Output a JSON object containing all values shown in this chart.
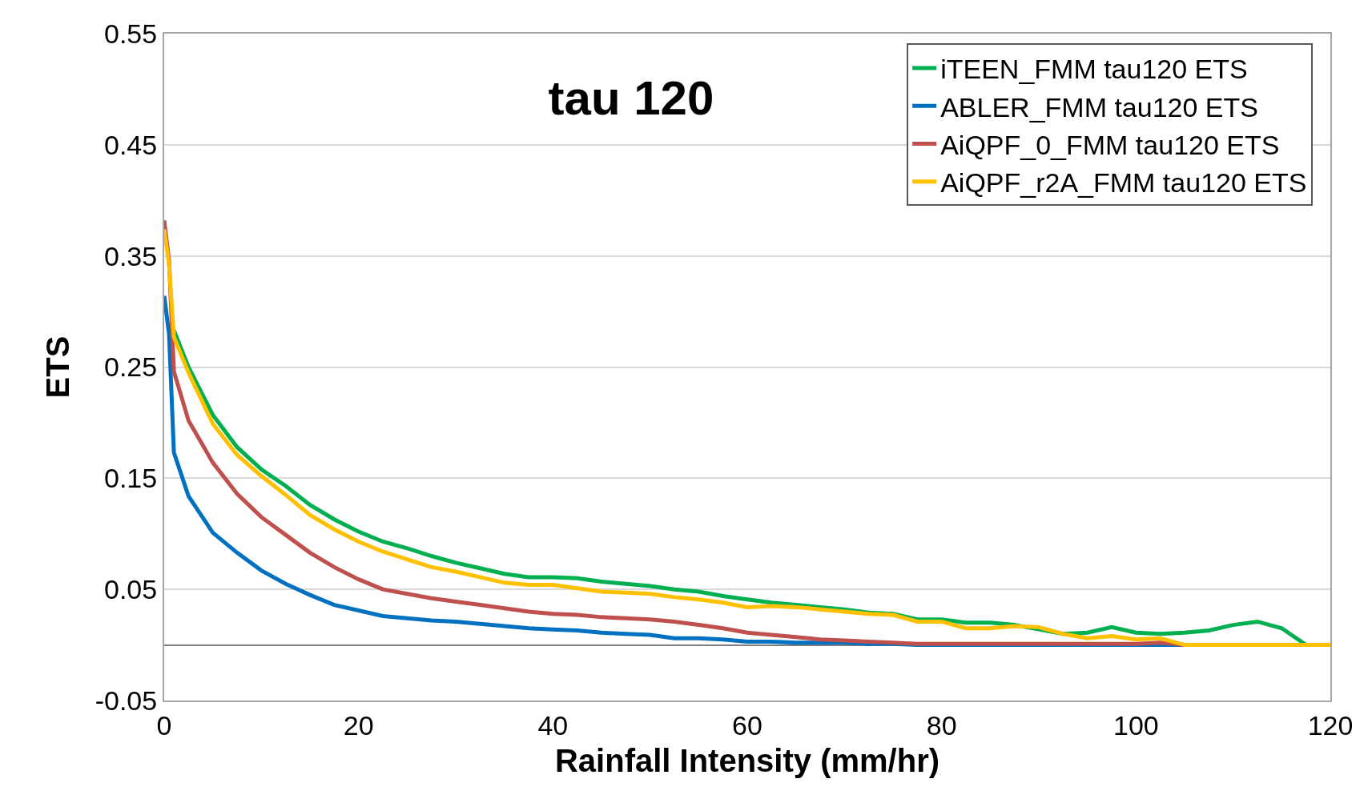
{
  "chart_data": {
    "type": "line",
    "title": "tau 120",
    "xlabel": "Rainfall Intensity (mm/hr)",
    "ylabel": "ETS",
    "x": [
      0,
      0.5,
      1,
      2.5,
      5,
      7.5,
      10,
      12.5,
      15,
      17.5,
      20,
      22.5,
      25,
      27.5,
      30,
      32.5,
      35,
      37.5,
      40,
      42.5,
      45,
      47.5,
      50,
      52.5,
      55,
      57.5,
      60,
      62.5,
      65,
      67.5,
      70,
      72.5,
      75,
      77.5,
      80,
      82.5,
      85,
      87.5,
      90,
      92.5,
      95,
      97.5,
      100,
      102.5,
      105,
      107.5,
      110,
      112.5,
      115,
      117.5,
      120
    ],
    "series": [
      {
        "name": "iTEEN_FMM tau120 ETS",
        "color": "#00b050",
        "values": [
          null,
          null,
          0.283,
          0.25,
          0.207,
          0.178,
          0.158,
          0.143,
          0.126,
          0.113,
          0.102,
          0.093,
          0.087,
          0.08,
          0.074,
          0.069,
          0.064,
          0.061,
          0.061,
          0.06,
          0.057,
          0.055,
          0.053,
          0.05,
          0.048,
          0.044,
          0.041,
          0.038,
          0.036,
          0.034,
          0.032,
          0.029,
          0.028,
          0.023,
          0.023,
          0.02,
          0.02,
          0.018,
          0.014,
          0.01,
          0.011,
          0.016,
          0.011,
          0.01,
          0.011,
          0.013,
          0.018,
          0.021,
          0.015,
          0,
          0
        ]
      },
      {
        "name": "ABLER_FMM tau120 ETS",
        "color": "#0070c0",
        "values": [
          0.314,
          0.28,
          0.173,
          0.134,
          0.101,
          0.083,
          0.067,
          0.055,
          0.045,
          0.036,
          0.031,
          0.026,
          0.024,
          0.022,
          0.021,
          0.019,
          0.017,
          0.015,
          0.014,
          0.013,
          0.011,
          0.01,
          0.009,
          0.006,
          0.006,
          0.005,
          0.003,
          0.003,
          0.002,
          0.002,
          0.002,
          0.001,
          0.001,
          0,
          0,
          0,
          0,
          0,
          0,
          0,
          0,
          0,
          0,
          0,
          0,
          0,
          null,
          null,
          null,
          null,
          null
        ]
      },
      {
        "name": "AiQPF_0_FMM tau120 ETS",
        "color": "#c0504d",
        "values": [
          0.382,
          0.346,
          0.246,
          0.202,
          0.164,
          0.136,
          0.115,
          0.099,
          0.083,
          0.07,
          0.059,
          0.05,
          0.046,
          0.042,
          0.039,
          0.036,
          0.033,
          0.03,
          0.028,
          0.027,
          0.025,
          0.024,
          0.023,
          0.021,
          0.018,
          0.015,
          0.011,
          0.009,
          0.007,
          0.005,
          0.004,
          0.003,
          0.002,
          0.001,
          0.001,
          0.001,
          0.001,
          0.001,
          0.001,
          0.001,
          0.001,
          0.001,
          0.001,
          0.002,
          0,
          0,
          null,
          null,
          null,
          null,
          null
        ]
      },
      {
        "name": "AiQPF_r2A_FMM tau120 ETS",
        "color": "#ffc000",
        "values": [
          0.374,
          0.342,
          0.277,
          0.245,
          0.199,
          0.171,
          0.152,
          0.135,
          0.117,
          0.104,
          0.093,
          0.084,
          0.077,
          0.07,
          0.066,
          0.061,
          0.056,
          0.054,
          0.054,
          0.051,
          0.048,
          0.047,
          0.046,
          0.043,
          0.041,
          0.038,
          0.034,
          0.035,
          0.034,
          0.032,
          0.03,
          0.028,
          0.027,
          0.021,
          0.021,
          0.015,
          0.015,
          0.017,
          0.016,
          0.01,
          0.006,
          0.008,
          0.005,
          0.006,
          0,
          0,
          0,
          0,
          0,
          0,
          0
        ]
      }
    ],
    "xlim": [
      0,
      120
    ],
    "xticks": [
      0,
      20,
      40,
      60,
      80,
      100,
      120
    ],
    "ylim": [
      -0.05,
      0.55
    ],
    "yticks": [
      {
        "value": 0.55,
        "label": "0.55"
      },
      {
        "value": 0.45,
        "label": "0.45"
      },
      {
        "value": 0.35,
        "label": "0.35"
      },
      {
        "value": 0.25,
        "label": "0.25"
      },
      {
        "value": 0.15,
        "label": "0.15"
      },
      {
        "value": 0.05,
        "label": "0.05"
      },
      {
        "value": -0.05,
        "label": "-0.05"
      }
    ],
    "grid": "y",
    "legend": "top right",
    "marker": "none",
    "line_style": "solid"
  }
}
